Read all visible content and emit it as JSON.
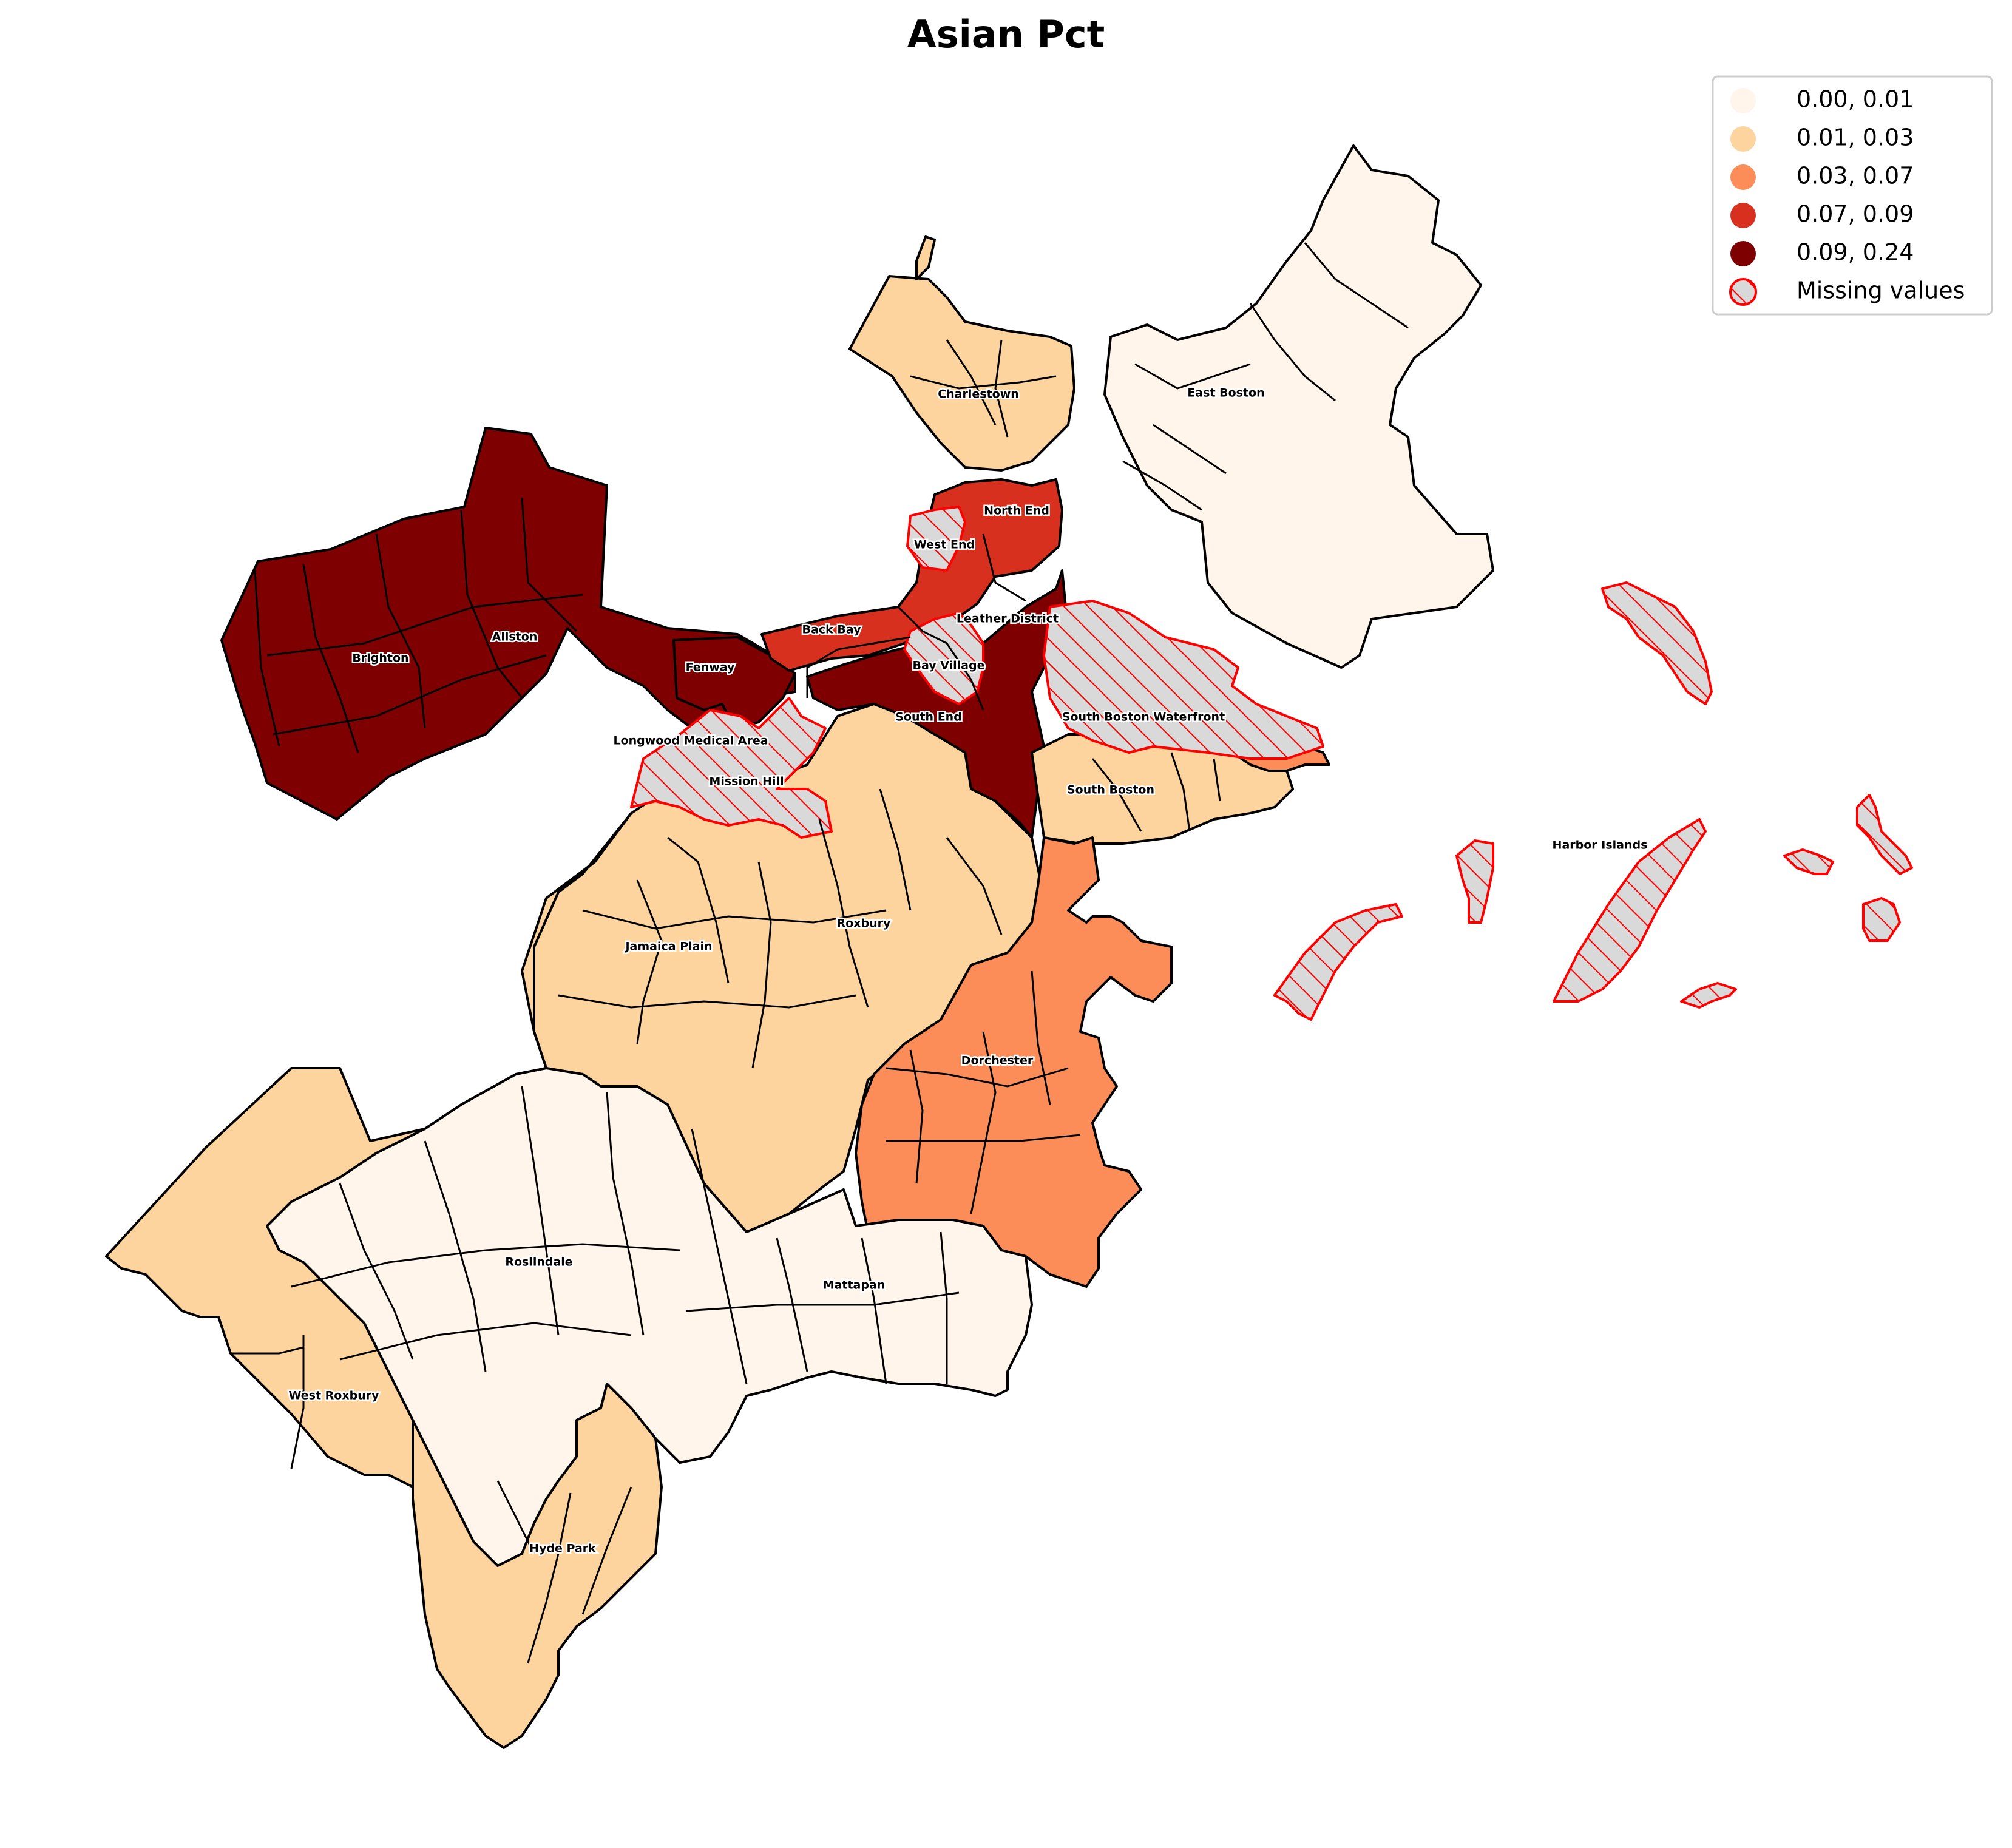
{
  "title": "Asian Pct",
  "legend": {
    "entries": [
      {
        "label": "0.00, 0.01",
        "color": "#fff5eb"
      },
      {
        "label": "0.01, 0.03",
        "color": "#fdd49e"
      },
      {
        "label": "0.03, 0.07",
        "color": "#fc8d59"
      },
      {
        "label": "0.07, 0.09",
        "color": "#d7301f"
      },
      {
        "label": "0.09, 0.24",
        "color": "#7f0000"
      }
    ],
    "missing": {
      "label": "Missing values",
      "fill": "#d9d9d9",
      "edge": "#ff0000",
      "hatch": "///"
    }
  },
  "neighborhoods": [
    {
      "name": "Charlestown",
      "class": "0.01, 0.03"
    },
    {
      "name": "East Boston",
      "class": "0.00, 0.01"
    },
    {
      "name": "North End",
      "class": "0.07, 0.09"
    },
    {
      "name": "West End",
      "class": "Missing values"
    },
    {
      "name": "Leather District",
      "class": "Missing values"
    },
    {
      "name": "Back Bay",
      "class": "0.07, 0.09"
    },
    {
      "name": "Allston",
      "class": "0.09, 0.24"
    },
    {
      "name": "Brighton",
      "class": "0.09, 0.24"
    },
    {
      "name": "Fenway",
      "class": "0.09, 0.24"
    },
    {
      "name": "Bay Village",
      "class": "Missing values"
    },
    {
      "name": "South End",
      "class": "0.09, 0.24"
    },
    {
      "name": "South Boston Waterfront",
      "class": "Missing values"
    },
    {
      "name": "Longwood Medical Area",
      "class": "Missing values"
    },
    {
      "name": "Mission Hill",
      "class": "Missing values"
    },
    {
      "name": "South Boston",
      "class": "0.01, 0.03"
    },
    {
      "name": "Harbor Islands",
      "class": "Missing values"
    },
    {
      "name": "Roxbury",
      "class": "0.01, 0.03"
    },
    {
      "name": "Jamaica Plain",
      "class": "0.01, 0.03"
    },
    {
      "name": "Dorchester",
      "class": "0.03, 0.07"
    },
    {
      "name": "Roslindale",
      "class": "0.00, 0.01"
    },
    {
      "name": "Mattapan",
      "class": "0.00, 0.01"
    },
    {
      "name": "West Roxbury",
      "class": "0.01, 0.03"
    },
    {
      "name": "Hyde Park",
      "class": "0.01, 0.03"
    }
  ]
}
